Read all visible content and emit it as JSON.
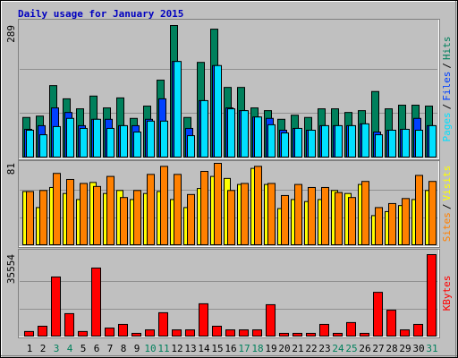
{
  "chart_data": [
    {
      "type": "bar",
      "title": "Daily usage for January 2015",
      "categories": [
        "1",
        "2",
        "3",
        "4",
        "5",
        "6",
        "7",
        "8",
        "9",
        "10",
        "11",
        "12",
        "13",
        "14",
        "15",
        "16",
        "17",
        "18",
        "19",
        "20",
        "21",
        "22",
        "23",
        "24",
        "25",
        "26",
        "27",
        "28",
        "29",
        "30",
        "31"
      ],
      "category_colors": [
        "#000000",
        "#000000",
        "#00805c",
        "#00805c",
        "#000000",
        "#000000",
        "#000000",
        "#000000",
        "#000000",
        "#00805c",
        "#00805c",
        "#000000",
        "#000000",
        "#000000",
        "#000000",
        "#000000",
        "#00805c",
        "#00805c",
        "#000000",
        "#000000",
        "#000000",
        "#000000",
        "#000000",
        "#00805c",
        "#00805c",
        "#000000",
        "#000000",
        "#000000",
        "#000000",
        "#000000",
        "#00805c"
      ],
      "separator": "/",
      "ylim": [
        0,
        289
      ],
      "yticks": [
        289
      ],
      "series": [
        {
          "name": "Hits",
          "color": "#00805c",
          "values": [
            87,
            90,
            157,
            128,
            106,
            134,
            108,
            130,
            85,
            112,
            169,
            289,
            87,
            208,
            281,
            153,
            153,
            108,
            102,
            83,
            92,
            87,
            106,
            106,
            98,
            102,
            144,
            106,
            114,
            114,
            112
          ]
        },
        {
          "name": "Files",
          "color": "#0040ff",
          "values": [
            61,
            69,
            108,
            98,
            69,
            83,
            83,
            69,
            69,
            83,
            128,
            210,
            63,
            124,
            201,
            108,
            102,
            88,
            85,
            59,
            63,
            59,
            69,
            69,
            69,
            73,
            55,
            59,
            61,
            85,
            69
          ]
        },
        {
          "name": "Pages",
          "color": "#00e0ff",
          "values": [
            59,
            49,
            67,
            85,
            63,
            83,
            63,
            69,
            55,
            79,
            79,
            210,
            47,
            124,
            201,
            106,
            102,
            88,
            71,
            53,
            63,
            59,
            69,
            69,
            69,
            73,
            49,
            59,
            61,
            59,
            69
          ]
        }
      ]
    },
    {
      "type": "bar",
      "ylim": [
        0,
        81
      ],
      "yticks": [
        81
      ],
      "series": [
        {
          "name": "Visits",
          "color": "#ffff00",
          "values": [
            53,
            37,
            57,
            51,
            45,
            62,
            51,
            54,
            45,
            51,
            53,
            45,
            37,
            56,
            68,
            66,
            60,
            76,
            60,
            36,
            45,
            43,
            45,
            54,
            51,
            60,
            29,
            33,
            39,
            45,
            54
          ]
        },
        {
          "name": "Sites",
          "color": "#ff8000",
          "values": [
            53,
            54,
            71,
            65,
            61,
            58,
            68,
            47,
            54,
            70,
            78,
            70,
            50,
            73,
            81,
            54,
            61,
            78,
            61,
            49,
            60,
            57,
            57,
            52,
            47,
            63,
            37,
            41,
            46,
            69,
            63
          ]
        }
      ]
    },
    {
      "type": "bar",
      "ylim": [
        0,
        35554
      ],
      "yticks": [
        35554
      ],
      "series": [
        {
          "name": "KBytes",
          "color": "#ff0000",
          "values": [
            2000,
            4300,
            25800,
            9800,
            2000,
            29700,
            3500,
            5100,
            1200,
            2700,
            10200,
            2700,
            2700,
            14100,
            4300,
            2700,
            2700,
            2700,
            13700,
            1200,
            1200,
            1200,
            5100,
            1200,
            5900,
            1200,
            19100,
            11300,
            2700,
            5100,
            35554
          ]
        }
      ]
    }
  ]
}
